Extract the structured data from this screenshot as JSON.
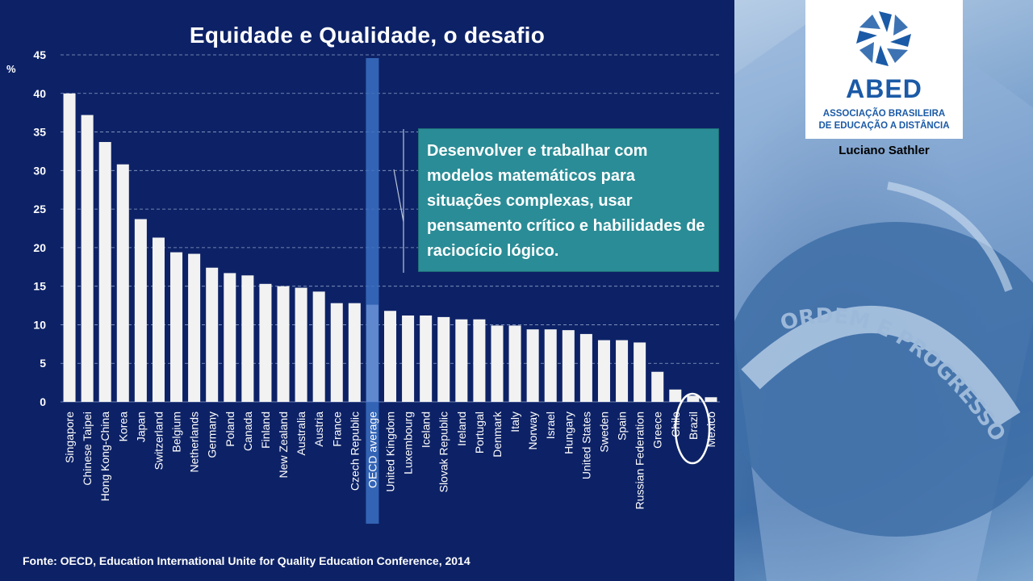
{
  "slide": {
    "title": "Equidade e Qualidade, o desafio",
    "y_unit": "%",
    "callout": "Desenvolver e trabalhar com modelos matemáticos para situações complexas, usar pensamento crítico e habilidades de raciocício lógico.",
    "source": "Fonte: OECD, Education International Unite for Quality Education Conference, 2014",
    "logo": {
      "name": "ABED",
      "subtitle_line1": "ASSOCIAÇÃO BRASILEIRA",
      "subtitle_line2": "DE EDUCAÇÃO A DISTÂNCIA",
      "brand_color": "#1b5aa6"
    },
    "author": "Luciano Sathler",
    "flag_motto": "ORDEM E PROGRESSO"
  },
  "chart_data": {
    "type": "bar",
    "title": "Equidade e Qualidade, o desafio",
    "ylabel": "%",
    "ylim": [
      0,
      45
    ],
    "yticks": [
      0,
      5,
      10,
      15,
      20,
      25,
      30,
      35,
      40,
      45
    ],
    "grid": true,
    "categories": [
      "Singapore",
      "Chinese Taipei",
      "Hong Kong-China",
      "Korea",
      "Japan",
      "Switzerland",
      "Belgium",
      "Netherlands",
      "Germany",
      "Poland",
      "Canada",
      "Finland",
      "New Zealand",
      "Australia",
      "Austria",
      "France",
      "Czech Republic",
      "OECD average",
      "United Kingdom",
      "Luxembourg",
      "Iceland",
      "Slovak Republic",
      "Ireland",
      "Portugal",
      "Denmark",
      "Italy",
      "Norway",
      "Israel",
      "Hungary",
      "United States",
      "Sweden",
      "Spain",
      "Russian Federation",
      "Greece",
      "Chile",
      "Brazil",
      "Mexico"
    ],
    "values": [
      40.0,
      37.2,
      33.7,
      30.8,
      23.7,
      21.3,
      19.4,
      19.2,
      17.4,
      16.7,
      16.4,
      15.3,
      15.0,
      14.8,
      14.3,
      12.8,
      12.8,
      12.6,
      11.8,
      11.2,
      11.2,
      11.0,
      10.7,
      10.7,
      9.9,
      9.9,
      9.4,
      9.4,
      9.3,
      8.8,
      8.0,
      8.0,
      7.7,
      3.9,
      1.6,
      0.8,
      0.6
    ],
    "highlight_category": "OECD average",
    "circled_category": "Brazil",
    "bar_color": "#f2f2f2",
    "highlight_color": "#3b6fc2"
  }
}
